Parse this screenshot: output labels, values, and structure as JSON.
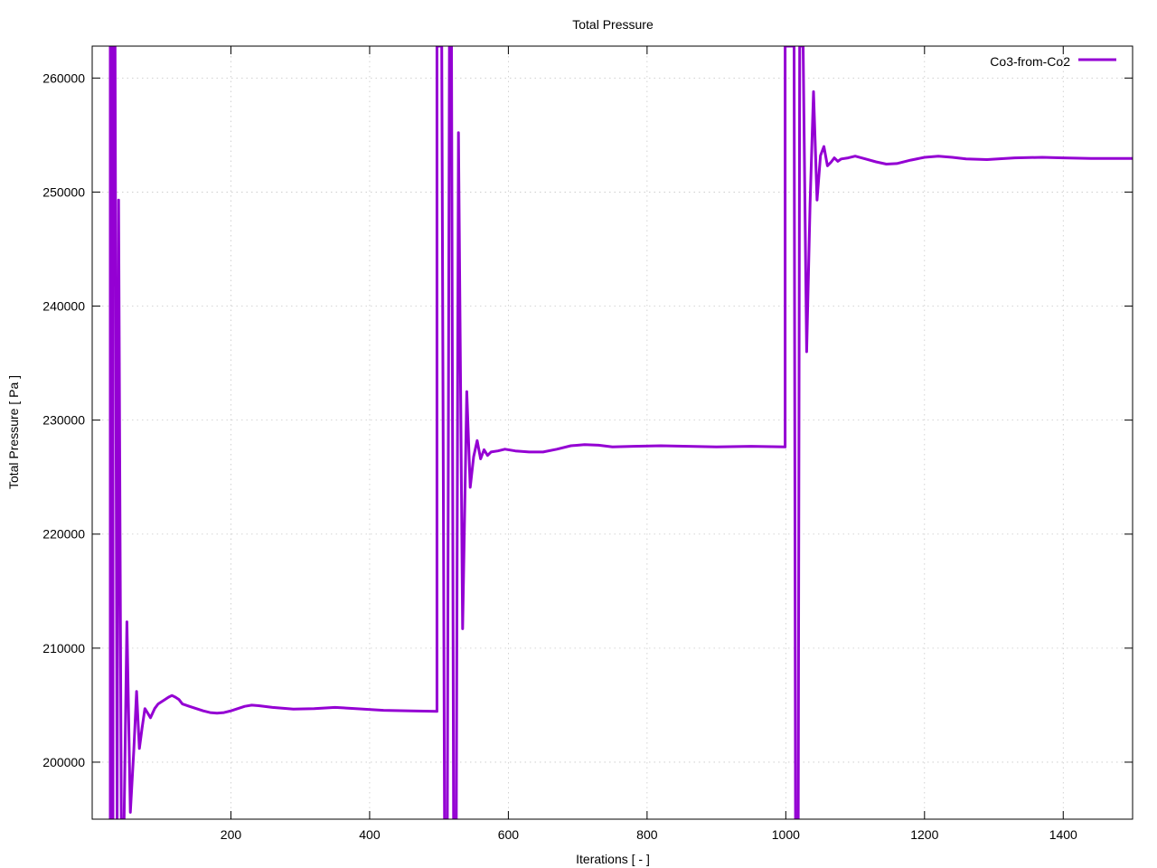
{
  "chart_data": {
    "type": "line",
    "title": "Total Pressure",
    "xlabel": "Iterations [ - ]",
    "ylabel": "Total Pressure [ Pa ]",
    "xlim": [
      0,
      1500
    ],
    "ylim": [
      195000,
      262800
    ],
    "xticks": [
      200,
      400,
      600,
      800,
      1000,
      1200,
      1400
    ],
    "yticks": [
      200000,
      210000,
      220000,
      230000,
      240000,
      250000,
      260000
    ],
    "grid": true,
    "legend_position": "top-right",
    "series": [
      {
        "name": "Co3-from-Co2",
        "color": "#9400d3",
        "points": [
          [
            26,
            262800
          ],
          [
            26,
            195000
          ],
          [
            30,
            195000
          ],
          [
            30,
            262800
          ],
          [
            33,
            262800
          ],
          [
            36,
            195000
          ],
          [
            38,
            249300
          ],
          [
            42,
            195000
          ],
          [
            46,
            195000
          ],
          [
            50,
            212300
          ],
          [
            55,
            195600
          ],
          [
            60,
            201000
          ],
          [
            64,
            206200
          ],
          [
            68,
            201200
          ],
          [
            72,
            203000
          ],
          [
            76,
            204700
          ],
          [
            80,
            204300
          ],
          [
            84,
            203900
          ],
          [
            90,
            204700
          ],
          [
            95,
            205100
          ],
          [
            100,
            205300
          ],
          [
            105,
            205500
          ],
          [
            110,
            205700
          ],
          [
            115,
            205850
          ],
          [
            120,
            205700
          ],
          [
            125,
            205500
          ],
          [
            130,
            205100
          ],
          [
            140,
            204900
          ],
          [
            150,
            204700
          ],
          [
            160,
            204500
          ],
          [
            170,
            204350
          ],
          [
            180,
            204300
          ],
          [
            190,
            204350
          ],
          [
            200,
            204500
          ],
          [
            210,
            204700
          ],
          [
            220,
            204900
          ],
          [
            230,
            205000
          ],
          [
            240,
            204950
          ],
          [
            260,
            204800
          ],
          [
            290,
            204650
          ],
          [
            320,
            204700
          ],
          [
            350,
            204800
          ],
          [
            380,
            204700
          ],
          [
            420,
            204550
          ],
          [
            460,
            204500
          ],
          [
            497,
            204450
          ],
          [
            497,
            262800
          ],
          [
            504,
            262800
          ],
          [
            508,
            195000
          ],
          [
            512,
            195000
          ],
          [
            515,
            262800
          ],
          [
            518,
            262800
          ],
          [
            521,
            195000
          ],
          [
            525,
            195000
          ],
          [
            528,
            255200
          ],
          [
            534,
            211700
          ],
          [
            540,
            232500
          ],
          [
            545,
            224100
          ],
          [
            550,
            226800
          ],
          [
            555,
            228200
          ],
          [
            560,
            226600
          ],
          [
            565,
            227400
          ],
          [
            570,
            226900
          ],
          [
            575,
            227200
          ],
          [
            585,
            227300
          ],
          [
            595,
            227450
          ],
          [
            610,
            227300
          ],
          [
            630,
            227200
          ],
          [
            650,
            227200
          ],
          [
            670,
            227450
          ],
          [
            690,
            227750
          ],
          [
            710,
            227850
          ],
          [
            730,
            227800
          ],
          [
            750,
            227650
          ],
          [
            780,
            227700
          ],
          [
            820,
            227750
          ],
          [
            860,
            227700
          ],
          [
            900,
            227650
          ],
          [
            950,
            227700
          ],
          [
            999,
            227650
          ],
          [
            999,
            262800
          ],
          [
            1012,
            262800
          ],
          [
            1014,
            195000
          ],
          [
            1018,
            195000
          ],
          [
            1020,
            262800
          ],
          [
            1025,
            262800
          ],
          [
            1030,
            236000
          ],
          [
            1035,
            249000
          ],
          [
            1040,
            258800
          ],
          [
            1045,
            249300
          ],
          [
            1050,
            253200
          ],
          [
            1055,
            254000
          ],
          [
            1060,
            252300
          ],
          [
            1065,
            252600
          ],
          [
            1070,
            253000
          ],
          [
            1075,
            252700
          ],
          [
            1080,
            252900
          ],
          [
            1090,
            253000
          ],
          [
            1100,
            253150
          ],
          [
            1115,
            252900
          ],
          [
            1130,
            252650
          ],
          [
            1145,
            252450
          ],
          [
            1160,
            252500
          ],
          [
            1180,
            252800
          ],
          [
            1200,
            253050
          ],
          [
            1220,
            253150
          ],
          [
            1240,
            253050
          ],
          [
            1260,
            252900
          ],
          [
            1290,
            252850
          ],
          [
            1330,
            253000
          ],
          [
            1370,
            253050
          ],
          [
            1400,
            253000
          ],
          [
            1440,
            252950
          ],
          [
            1500,
            252950
          ]
        ]
      }
    ]
  }
}
